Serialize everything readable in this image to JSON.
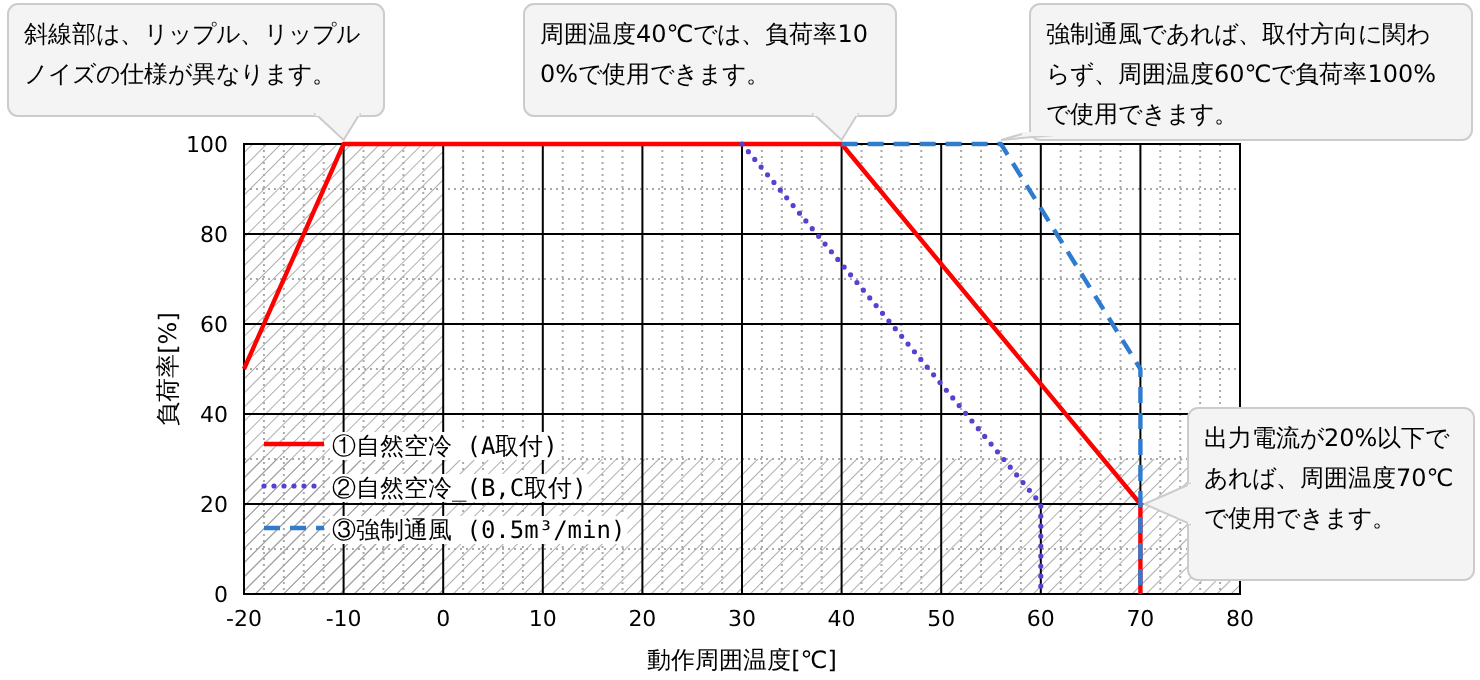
{
  "chart_data": {
    "type": "line",
    "xlabel": "動作周囲温度[℃]",
    "ylabel": "負荷率[%]",
    "xlim": [
      -20,
      80
    ],
    "xticks": [
      -20,
      -10,
      0,
      10,
      20,
      30,
      40,
      50,
      60,
      70,
      80
    ],
    "ylim": [
      0,
      100
    ],
    "yticks": [
      0,
      20,
      40,
      60,
      80,
      100
    ],
    "grid": true,
    "legend": "bottom left",
    "bands": [
      {
        "axis": "y",
        "from": 0,
        "to": 30,
        "color": "#999999"
      },
      {
        "axis": "x",
        "from": -20,
        "to": 0,
        "color": "#999999"
      }
    ],
    "series": [
      {
        "name": "①自然空冷 (A取付)",
        "color": "#ff0000",
        "line_style": "solid",
        "x": [
          -20,
          -10,
          40,
          70,
          70
        ],
        "values": [
          50,
          100,
          100,
          20,
          0
        ]
      },
      {
        "name": "②自然空冷_(B,C取付)",
        "color": "#5b3fd0",
        "line_style": "dotted",
        "x": [
          30,
          60,
          60
        ],
        "values": [
          100,
          20,
          0
        ]
      },
      {
        "name": "③強制通風 (0.5m³/min)",
        "color": "#2e7bd0",
        "line_style": "dashed",
        "x": [
          40,
          56,
          70,
          70
        ],
        "values": [
          100,
          100,
          50,
          0
        ]
      }
    ],
    "annotations": [
      {
        "text": "斜線部は、リップル、リップルノイズの仕様が異なります。",
        "x": -10,
        "y": 100
      },
      {
        "text": "周囲温度40℃では、負荷率100%で使用できます。",
        "x": 40,
        "y": 100
      },
      {
        "text": "強制通風であれば、取付方向に関わらず、周囲温度60℃で負荷率100%で使用できます。",
        "x": 56,
        "y": 100
      },
      {
        "text": "出力電流が20%以下であれば、周囲温度70℃で使用できます。",
        "x": 70,
        "y": 20
      }
    ]
  }
}
